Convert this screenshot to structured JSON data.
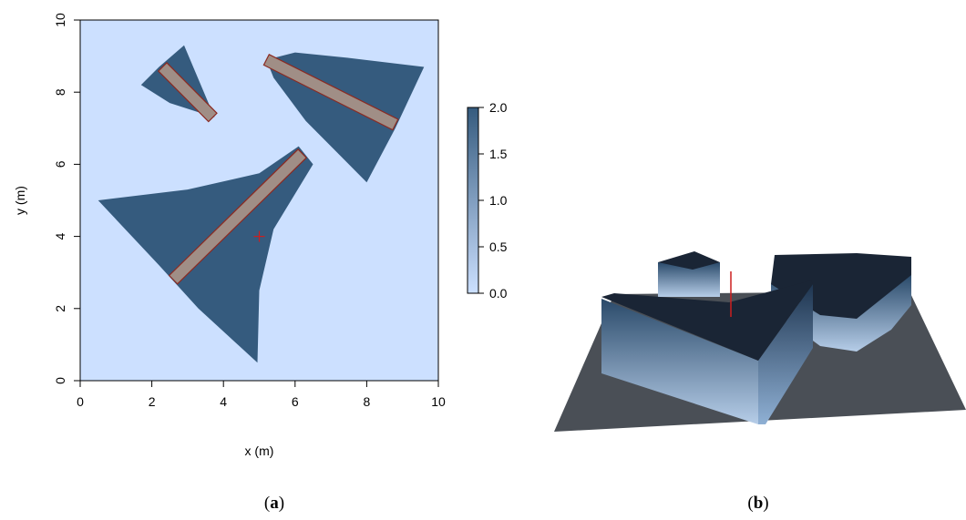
{
  "chart_data": [
    {
      "type": "heatmap",
      "panel": "a",
      "xlabel": "x (m)",
      "ylabel": "y (m)",
      "xlim": [
        0,
        10
      ],
      "ylim": [
        0,
        10
      ],
      "x_ticks": [
        0,
        2,
        4,
        6,
        8,
        10
      ],
      "y_ticks": [
        0,
        2,
        4,
        6,
        8,
        10
      ],
      "background_value": 0.0,
      "regions": [
        {
          "name": "small-triangle",
          "value": 2.0,
          "polygon": [
            [
              1.7,
              8.2
            ],
            [
              2.2,
              8.7
            ],
            [
              2.9,
              9.3
            ],
            [
              3.75,
              7.3
            ],
            [
              2.5,
              7.7
            ]
          ]
        },
        {
          "name": "upper-right-sector",
          "value": 2.0,
          "polygon": [
            [
              5.2,
              8.9
            ],
            [
              6.0,
              9.1
            ],
            [
              7.5,
              8.95
            ],
            [
              9.6,
              8.7
            ],
            [
              8.8,
              7.0
            ],
            [
              8.0,
              5.5
            ],
            [
              6.3,
              7.2
            ],
            [
              5.4,
              8.4
            ]
          ]
        },
        {
          "name": "large-sector",
          "value": 2.0,
          "polygon": [
            [
              0.5,
              5.0
            ],
            [
              3.0,
              5.3
            ],
            [
              5.0,
              5.75
            ],
            [
              6.1,
              6.5
            ],
            [
              6.5,
              6.0
            ],
            [
              5.4,
              4.2
            ],
            [
              5.0,
              2.5
            ],
            [
              4.95,
              0.5
            ],
            [
              3.3,
              2.0
            ],
            [
              2.2,
              3.2
            ]
          ]
        }
      ],
      "bars": [
        {
          "name": "bar-1",
          "from": [
            2.3,
            8.7
          ],
          "to": [
            3.7,
            7.3
          ]
        },
        {
          "name": "bar-2",
          "from": [
            5.2,
            8.9
          ],
          "to": [
            8.8,
            7.1
          ]
        },
        {
          "name": "bar-3",
          "from": [
            2.6,
            2.8
          ],
          "to": [
            6.2,
            6.3
          ]
        }
      ],
      "marker": {
        "x": 5.0,
        "y": 4.0,
        "color": "#cc1f1f"
      },
      "colorbar": {
        "min": 0.0,
        "max": 2.0,
        "ticks": [
          "0.0",
          "0.5",
          "1.0",
          "1.5",
          "2.0"
        ]
      },
      "colors": {
        "low": "#cce0ff",
        "high": "#355b7e",
        "bar_fill": "#a08e86",
        "bar_stroke": "#8b2a22"
      }
    },
    {
      "type": "surface-3d",
      "panel": "b",
      "colors": {
        "floor": "#4a4f56",
        "top": "#1a2535",
        "wall_top": "#2a4a6a",
        "wall_bottom": "#b6cde8",
        "marker": "#cc1f1f"
      }
    }
  ],
  "captions": {
    "a": "a",
    "b": "b"
  }
}
